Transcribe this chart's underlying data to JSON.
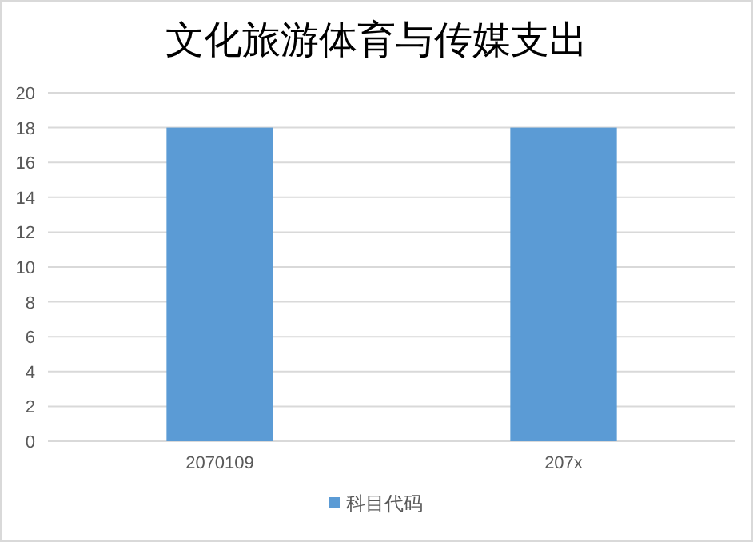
{
  "chart_data": {
    "type": "bar",
    "title": "文化旅游体育与传媒支出",
    "categories": [
      "2070109",
      "207x"
    ],
    "series": [
      {
        "name": "科目代码",
        "color": "#5b9bd5",
        "values": [
          18,
          18
        ]
      }
    ],
    "ylim": [
      0,
      20
    ],
    "yticks": [
      0,
      2,
      4,
      6,
      8,
      10,
      12,
      14,
      16,
      18,
      20
    ],
    "grid": "y",
    "legend": "bottom"
  }
}
